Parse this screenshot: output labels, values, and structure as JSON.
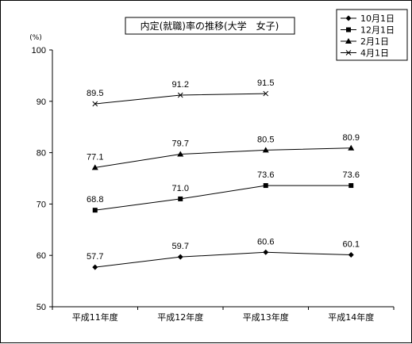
{
  "chart_data": {
    "type": "line",
    "title": "内定(就職)率の推移(大学　女子)",
    "ylabel": "(%)",
    "ylim": [
      50,
      100
    ],
    "yticks": [
      50,
      60,
      70,
      80,
      90,
      100
    ],
    "categories": [
      "平成11年度",
      "平成12年度",
      "平成13年度",
      "平成14年度"
    ],
    "grid": false,
    "legend_position": "top-right",
    "series": [
      {
        "name": "10月1日",
        "marker": "diamond",
        "values": [
          57.7,
          59.7,
          60.6,
          60.1
        ],
        "labels": [
          "57.7",
          "59.7",
          "60.6",
          "60.1"
        ]
      },
      {
        "name": "12月1日",
        "marker": "square",
        "values": [
          68.8,
          71.0,
          73.6,
          73.6
        ],
        "labels": [
          "68.8",
          "71.0",
          "73.6",
          "73.6"
        ]
      },
      {
        "name": "2月1日",
        "marker": "triangle",
        "values": [
          77.1,
          79.7,
          80.5,
          80.9
        ],
        "labels": [
          "77.1",
          "79.7",
          "80.5",
          "80.9"
        ]
      },
      {
        "name": "4月1日",
        "marker": "x",
        "values": [
          89.5,
          91.2,
          91.5,
          null
        ],
        "labels": [
          "89.5",
          "91.2",
          "91.5",
          null
        ]
      }
    ]
  }
}
